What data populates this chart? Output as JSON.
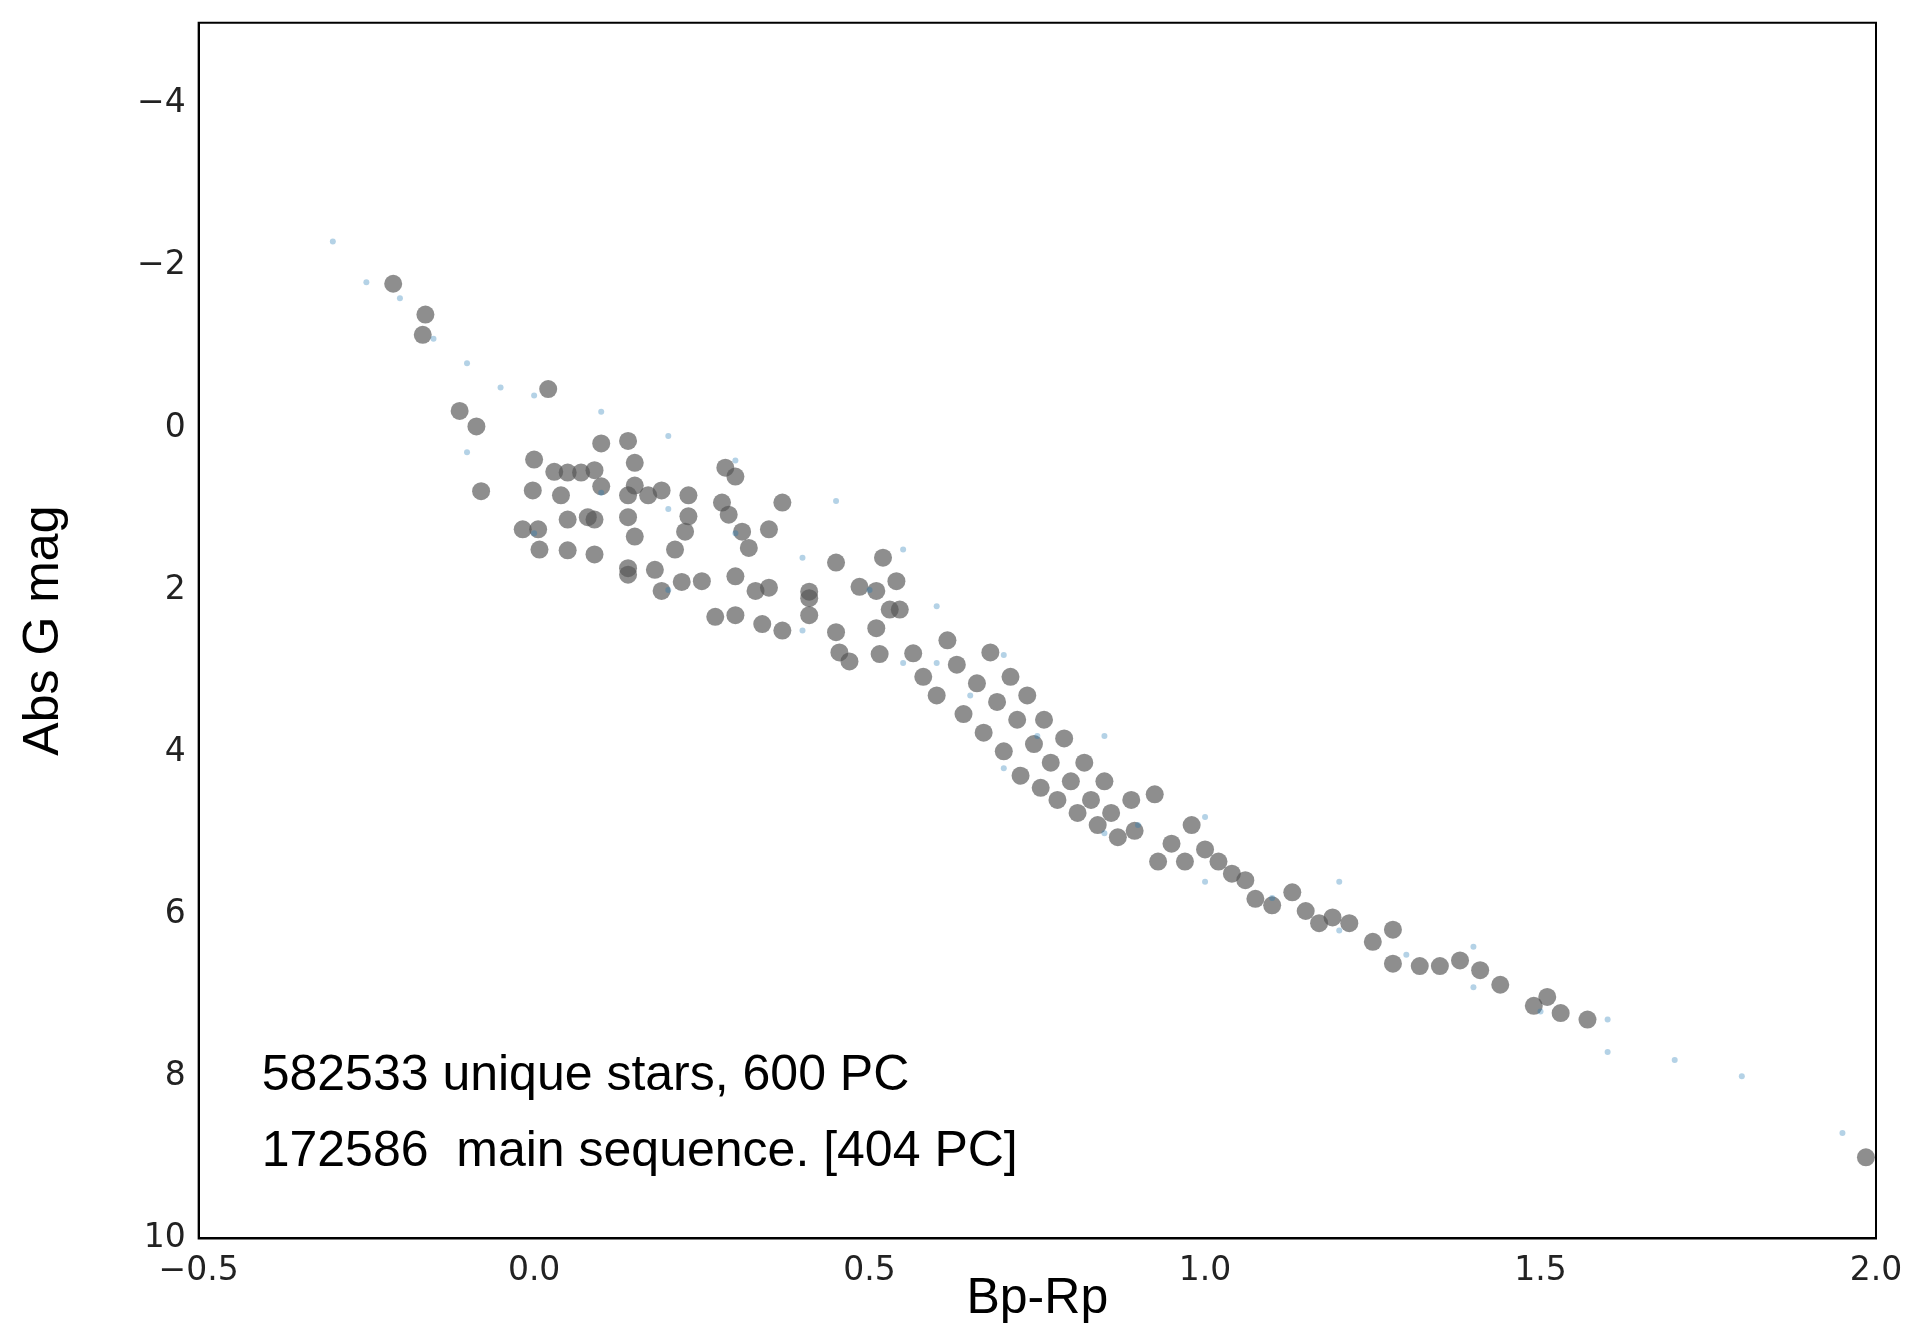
{
  "chart_data": {
    "type": "scatter",
    "xlabel": "Bp-Rp",
    "ylabel": "Abs G mag",
    "xlim": [
      -0.5,
      2.0
    ],
    "ylim": [
      10,
      -5
    ],
    "xticks": [
      {
        "value": -0.5,
        "label": "−0.5"
      },
      {
        "value": 0,
        "label": "0.0"
      },
      {
        "value": 0.5,
        "label": "0.5"
      },
      {
        "value": 1,
        "label": "1.0"
      },
      {
        "value": 1.5,
        "label": "1.5"
      },
      {
        "value": 2,
        "label": "2.0"
      }
    ],
    "yticks": [
      {
        "value": -4,
        "label": "−4"
      },
      {
        "value": -2,
        "label": "−2"
      },
      0,
      2,
      4,
      6,
      8,
      10
    ],
    "grid": false,
    "legend": false,
    "marker": "circle",
    "annotations": [
      "582533 unique stars, 600 PC",
      "172586  main sequence. [404 PC]"
    ],
    "series": [
      {
        "color": "#1f77b4",
        "x": [
          -0.3,
          -0.25,
          -0.2,
          -0.15,
          -0.1,
          -0.05,
          0.0,
          0.1,
          0.2,
          0.3,
          0.45,
          0.55,
          0.6,
          0.7,
          0.85,
          1.0,
          1.2,
          1.4,
          1.6,
          1.8,
          1.95,
          -0.1,
          0.0,
          0.2,
          0.4,
          0.55,
          0.7,
          0.85,
          1.0,
          1.2,
          1.4,
          1.6,
          0.1,
          0.2,
          0.3,
          0.4,
          0.5,
          0.6,
          0.65,
          0.75,
          0.8,
          0.9,
          1.1,
          1.3,
          1.5,
          1.7
        ],
        "values": [
          -2.3,
          -1.8,
          -1.6,
          -1.1,
          -0.8,
          -0.5,
          -0.4,
          -0.2,
          0.1,
          0.4,
          0.9,
          1.5,
          2.2,
          2.8,
          3.8,
          4.8,
          5.6,
          6.4,
          7.3,
          8.0,
          8.7,
          0.3,
          1.3,
          2.0,
          2.5,
          2.9,
          4.2,
          5.0,
          5.6,
          6.2,
          6.9,
          7.7,
          0.8,
          1.0,
          1.3,
          1.6,
          2.0,
          2.9,
          3.3,
          3.8,
          null,
          4.9,
          5.8,
          6.5,
          7.2,
          7.8
        ]
      },
      {
        "color": "#555555",
        "x": [
          -0.21,
          -0.162,
          -0.166,
          -0.111,
          -0.086,
          -0.079,
          0.021,
          0.0,
          -0.017,
          0.006,
          0.008,
          -0.002,
          0.03,
          0.05,
          0.07,
          0.09,
          0.1,
          0.14,
          0.15,
          0.04,
          0.05,
          0.09,
          0.08,
          0.05,
          0.09,
          0.1,
          0.14,
          0.15,
          0.17,
          0.19,
          0.14,
          0.15,
          0.14,
          0.14,
          0.18,
          0.21,
          0.23,
          0.23,
          0.225,
          0.19,
          0.22,
          0.25,
          0.27,
          0.285,
          0.3,
          0.28,
          0.29,
          0.31,
          0.32,
          0.3,
          0.33,
          0.3,
          0.34,
          0.35,
          0.37,
          0.35,
          0.37,
          0.41,
          0.41,
          0.41,
          0.45,
          0.45,
          0.455,
          0.47,
          0.485,
          0.51,
          0.52,
          0.51,
          0.515,
          0.54,
          0.545,
          0.53,
          0.565,
          0.58,
          0.6,
          0.616,
          0.63,
          0.64,
          0.66,
          0.67,
          0.68,
          0.69,
          0.7,
          0.71,
          0.72,
          0.725,
          0.735,
          0.745,
          0.755,
          0.76,
          0.77,
          0.78,
          0.79,
          0.8,
          0.81,
          0.82,
          0.83,
          0.84,
          0.85,
          0.86,
          0.87,
          0.89,
          0.895,
          0.925,
          0.93,
          0.95,
          0.97,
          0.98,
          1.0,
          1.02,
          1.04,
          1.06,
          1.075,
          1.1,
          1.13,
          1.15,
          1.17,
          1.19,
          1.215,
          1.25,
          1.28,
          1.28,
          1.32,
          1.35,
          1.38,
          1.41,
          1.44,
          1.49,
          1.51,
          1.53,
          1.57,
          1.985
        ],
        "values": [
          -1.78,
          -1.4,
          -1.15,
          -0.21,
          -0.02,
          0.78,
          -0.48,
          0.39,
          1.25,
          1.25,
          1.5,
          0.77,
          0.54,
          0.55,
          0.55,
          0.52,
          0.19,
          0.16,
          0.43,
          0.83,
          1.13,
          1.13,
          1.1,
          1.51,
          1.56,
          0.72,
          0.83,
          0.71,
          0.83,
          0.77,
          1.1,
          1.34,
          1.73,
          1.81,
          1.75,
          1.5,
          0.83,
          1.09,
          1.28,
          2.01,
          1.9,
          1.89,
          2.33,
          0.49,
          0.6,
          0.92,
          1.07,
          1.28,
          1.48,
          1.83,
          2.01,
          2.31,
          2.42,
          1.97,
          0.92,
          1.25,
          2.5,
          2.1,
          2.31,
          2.02,
          1.66,
          2.52,
          2.77,
          2.88,
          1.96,
          2.01,
          1.6,
          2.47,
          2.79,
          1.89,
          2.24,
          2.24,
          2.78,
          3.07,
          3.3,
          2.62,
          2.92,
          3.53,
          3.15,
          3.76,
          2.77,
          3.38,
          3.99,
          3.07,
          3.6,
          4.29,
          3.3,
          3.9,
          4.44,
          3.6,
          4.13,
          4.59,
          3.83,
          4.36,
          4.75,
          4.13,
          4.59,
          4.9,
          4.36,
          4.75,
          5.05,
          4.59,
          4.97,
          4.52,
          5.35,
          5.13,
          5.35,
          4.9,
          5.2,
          5.35,
          5.5,
          5.58,
          5.81,
          5.89,
          5.73,
          5.96,
          6.11,
          6.04,
          6.11,
          6.34,
          6.19,
          6.61,
          6.64,
          6.64,
          6.57,
          6.69,
          6.87,
          7.13,
          7.02,
          7.22,
          7.3,
          9.0
        ]
      }
    ]
  }
}
